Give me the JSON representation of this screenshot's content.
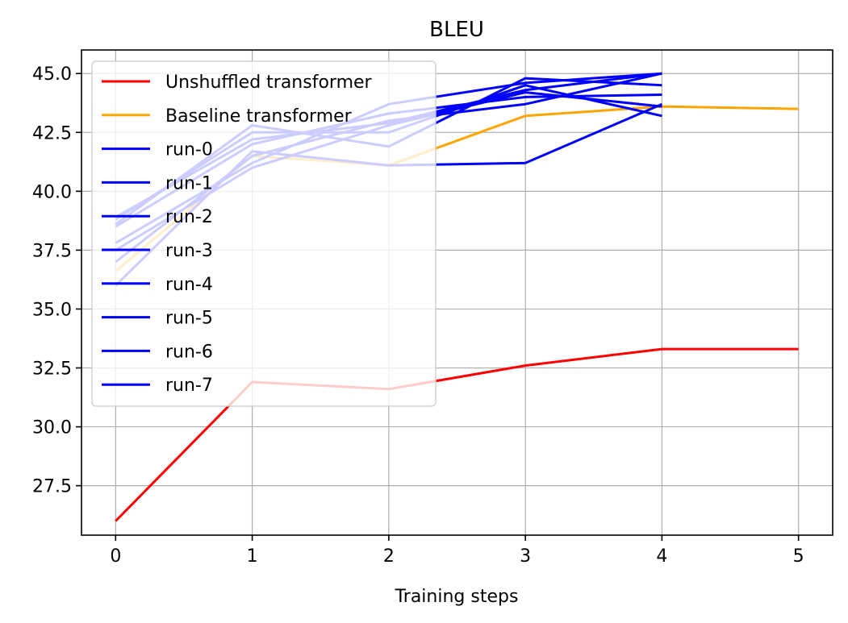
{
  "chart_data": {
    "type": "line",
    "title": "BLEU",
    "xlabel": "Training steps",
    "ylabel": "",
    "xlim": [
      -0.25,
      5.25
    ],
    "ylim": [
      25.4,
      46.0
    ],
    "xticks": [
      0,
      1,
      2,
      3,
      4,
      5
    ],
    "yticks": [
      27.5,
      30.0,
      32.5,
      35.0,
      37.5,
      40.0,
      42.5,
      45.0
    ],
    "xtick_labels": [
      "0",
      "1",
      "2",
      "3",
      "4",
      "5"
    ],
    "ytick_labels": [
      "27.5",
      "30.0",
      "32.5",
      "35.0",
      "37.5",
      "40.0",
      "42.5",
      "45.0"
    ],
    "grid": true,
    "legend_position": "upper-left",
    "series": [
      {
        "name": "Unshuffled transformer",
        "color": "#ff0000",
        "x": [
          0,
          1,
          2,
          3,
          4,
          5
        ],
        "values": [
          26.0,
          31.9,
          31.6,
          32.6,
          33.3,
          33.3
        ]
      },
      {
        "name": "Baseline transformer",
        "color": "#ffa500",
        "x": [
          0,
          1,
          2,
          3,
          4,
          5
        ],
        "values": [
          36.6,
          41.5,
          41.1,
          43.2,
          43.6,
          43.5
        ]
      },
      {
        "name": "run-0",
        "color": "#0000ff",
        "x": [
          0,
          1,
          2,
          3,
          4
        ],
        "values": [
          36.0,
          41.7,
          41.1,
          41.2,
          43.7
        ]
      },
      {
        "name": "run-1",
        "color": "#0000ff",
        "x": [
          0,
          1,
          2,
          3,
          4
        ],
        "values": [
          38.6,
          42.8,
          41.9,
          44.8,
          44.5
        ]
      },
      {
        "name": "run-2",
        "color": "#0000ff",
        "x": [
          0,
          1,
          2,
          3,
          4
        ],
        "values": [
          37.0,
          41.5,
          43.0,
          43.7,
          45.0
        ]
      },
      {
        "name": "run-3",
        "color": "#0000ff",
        "x": [
          0,
          1,
          2,
          3,
          4
        ],
        "values": [
          38.8,
          42.5,
          42.5,
          44.5,
          43.2
        ]
      },
      {
        "name": "run-4",
        "color": "#0000ff",
        "x": [
          0,
          1,
          2,
          3,
          4
        ],
        "values": [
          37.5,
          41.0,
          42.8,
          44.2,
          43.6
        ]
      },
      {
        "name": "run-5",
        "color": "#0000ff",
        "x": [
          0,
          1,
          2,
          3,
          4
        ],
        "values": [
          38.5,
          42.0,
          43.3,
          44.0,
          44.1
        ]
      },
      {
        "name": "run-6",
        "color": "#0000ff",
        "x": [
          0,
          1,
          2,
          3,
          4
        ],
        "values": [
          37.8,
          41.2,
          43.7,
          44.6,
          45.0
        ]
      },
      {
        "name": "run-7",
        "color": "#0000ff",
        "x": [
          0,
          1,
          2,
          3,
          4
        ],
        "values": [
          38.9,
          42.2,
          42.9,
          44.3,
          45.0
        ]
      }
    ]
  }
}
